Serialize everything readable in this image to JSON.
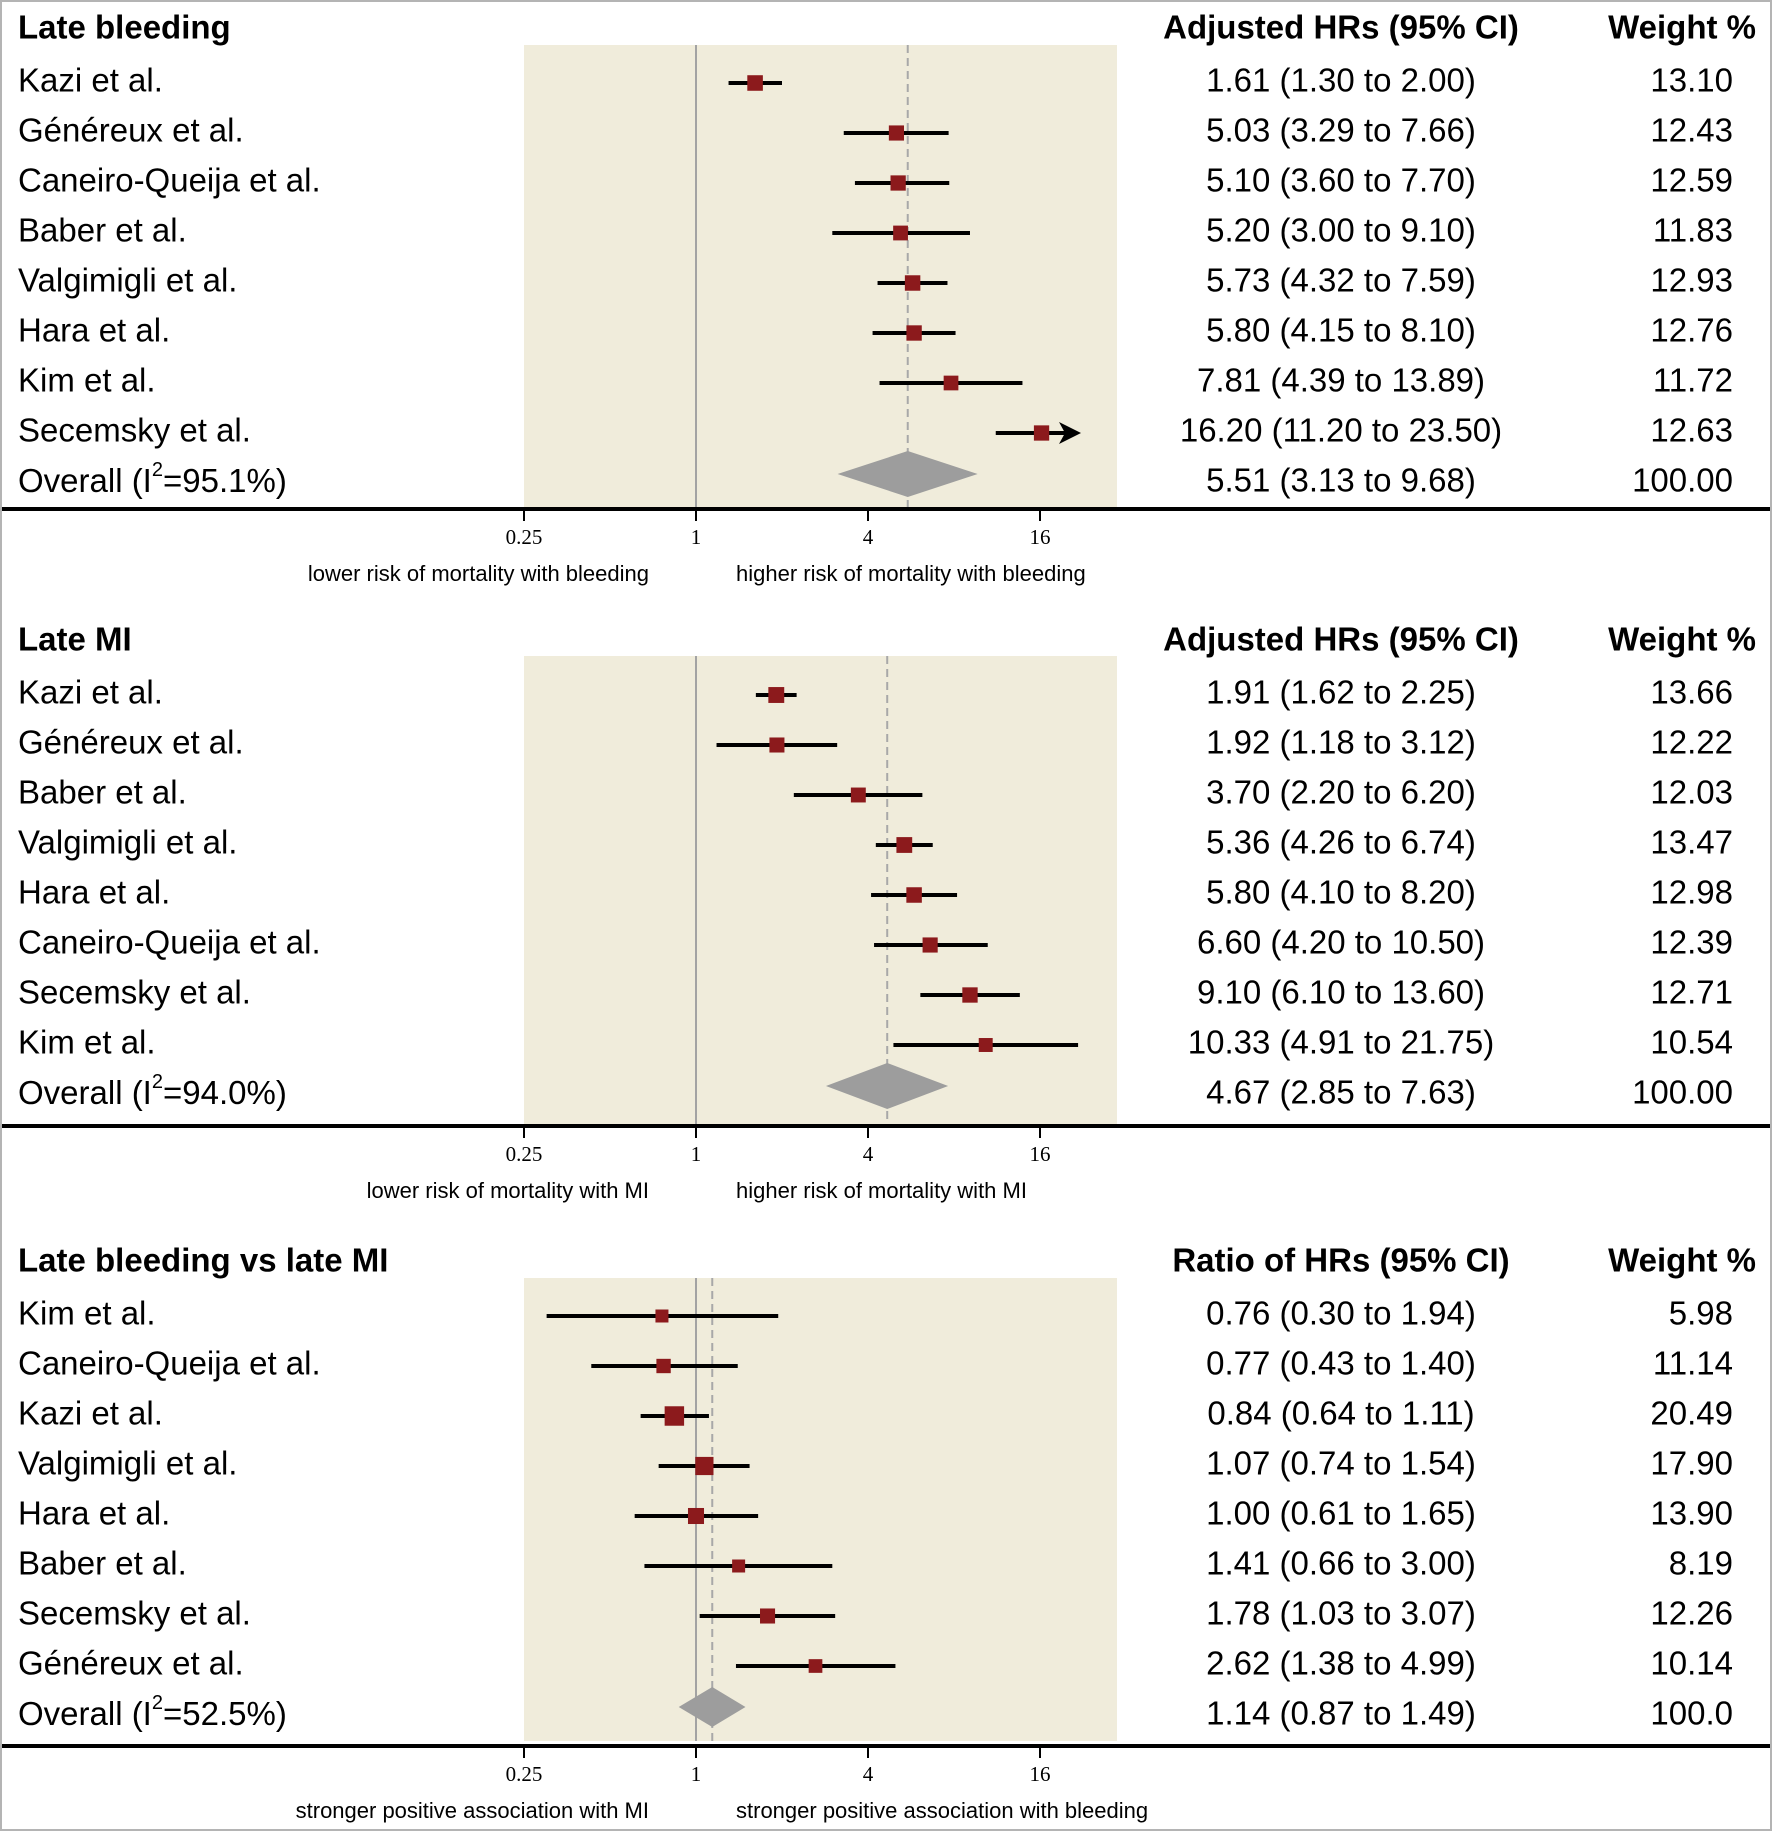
{
  "chart_data": [
    {
      "type": "forest",
      "title": "Late bleeding",
      "estimate_header": "Adjusted HRs (95% CI)",
      "weight_header": "Weight %",
      "x_scale": "log",
      "x_ticks": [
        0.25,
        1,
        4,
        16
      ],
      "x_tick_labels": [
        "0.25",
        "1",
        "4",
        "16"
      ],
      "xlim": [
        0.25,
        29.5
      ],
      "null_value": 1,
      "caption_left": "lower risk of mortality with bleeding",
      "caption_right": "higher risk of mortality with bleeding",
      "studies": [
        {
          "name": "Kazi et al.",
          "est": 1.61,
          "lo": 1.3,
          "hi": 2.0,
          "label": "1.61 (1.30 to 2.00)",
          "weight": "13.10"
        },
        {
          "name": "Généreux et al.",
          "est": 5.03,
          "lo": 3.29,
          "hi": 7.66,
          "label": "5.03 (3.29 to 7.66)",
          "weight": "12.43"
        },
        {
          "name": "Caneiro-Queija et al.",
          "est": 5.1,
          "lo": 3.6,
          "hi": 7.7,
          "label": "5.10 (3.60 to 7.70)",
          "weight": "12.59"
        },
        {
          "name": "Baber et al.",
          "est": 5.2,
          "lo": 3.0,
          "hi": 9.1,
          "label": "5.20 (3.00 to 9.10)",
          "weight": "11.83"
        },
        {
          "name": "Valgimigli et al.",
          "est": 5.73,
          "lo": 4.32,
          "hi": 7.59,
          "label": "5.73 (4.32 to 7.59)",
          "weight": "12.93"
        },
        {
          "name": "Hara et al.",
          "est": 5.8,
          "lo": 4.15,
          "hi": 8.1,
          "label": "5.80 (4.15 to 8.10)",
          "weight": "12.76"
        },
        {
          "name": "Kim et al.",
          "est": 7.81,
          "lo": 4.39,
          "hi": 13.89,
          "label": "7.81 (4.39 to 13.89)",
          "weight": "11.72"
        },
        {
          "name": "Secemsky et al.",
          "est": 16.2,
          "lo": 11.2,
          "hi": 23.5,
          "label": "16.20 (11.20 to 23.50)",
          "weight": "12.63",
          "arrow": true
        }
      ],
      "overall": {
        "name_prefix": "Overall (I",
        "sup": "2",
        "name_suffix": "=95.1%)",
        "est": 5.51,
        "lo": 3.13,
        "hi": 9.68,
        "label": "5.51 (3.13 to 9.68)",
        "weight": "100.00"
      }
    },
    {
      "type": "forest",
      "title": "Late MI",
      "estimate_header": "Adjusted HRs (95% CI)",
      "weight_header": "Weight %",
      "x_scale": "log",
      "x_ticks": [
        0.25,
        1,
        4,
        16
      ],
      "x_tick_labels": [
        "0.25",
        "1",
        "4",
        "16"
      ],
      "xlim": [
        0.25,
        29.5
      ],
      "null_value": 1,
      "caption_left": "lower risk of mortality with MI",
      "caption_right": "higher risk of mortality with MI",
      "studies": [
        {
          "name": "Kazi et al.",
          "est": 1.91,
          "lo": 1.62,
          "hi": 2.25,
          "label": "1.91 (1.62 to 2.25)",
          "weight": "13.66"
        },
        {
          "name": "Généreux et al.",
          "est": 1.92,
          "lo": 1.18,
          "hi": 3.12,
          "label": "1.92 (1.18 to 3.12)",
          "weight": "12.22"
        },
        {
          "name": "Baber et al.",
          "est": 3.7,
          "lo": 2.2,
          "hi": 6.2,
          "label": "3.70 (2.20 to 6.20)",
          "weight": "12.03"
        },
        {
          "name": "Valgimigli et al.",
          "est": 5.36,
          "lo": 4.26,
          "hi": 6.74,
          "label": "5.36 (4.26 to 6.74)",
          "weight": "13.47"
        },
        {
          "name": "Hara et al.",
          "est": 5.8,
          "lo": 4.1,
          "hi": 8.2,
          "label": "5.80 (4.10 to 8.20)",
          "weight": "12.98"
        },
        {
          "name": "Caneiro-Queija et al.",
          "est": 6.6,
          "lo": 4.2,
          "hi": 10.5,
          "label": "6.60 (4.20 to 10.50)",
          "weight": "12.39"
        },
        {
          "name": "Secemsky et al.",
          "est": 9.1,
          "lo": 6.1,
          "hi": 13.6,
          "label": "9.10 (6.10 to 13.60)",
          "weight": "12.71"
        },
        {
          "name": "Kim et al.",
          "est": 10.33,
          "lo": 4.91,
          "hi": 21.75,
          "label": "10.33 (4.91 to 21.75)",
          "weight": "10.54"
        }
      ],
      "overall": {
        "name_prefix": "Overall (I",
        "sup": "2",
        "name_suffix": "=94.0%)",
        "est": 4.67,
        "lo": 2.85,
        "hi": 7.63,
        "label": "4.67 (2.85 to 7.63)",
        "weight": "100.00"
      }
    },
    {
      "type": "forest",
      "title": "Late bleeding vs late MI",
      "estimate_header": "Ratio of HRs (95% CI)",
      "weight_header": "Weight %",
      "x_scale": "log",
      "x_ticks": [
        0.25,
        1,
        4,
        16
      ],
      "x_tick_labels": [
        "0.25",
        "1",
        "4",
        "16"
      ],
      "xlim": [
        0.25,
        29.5
      ],
      "null_value": 1,
      "caption_left": "stronger positive association with MI",
      "caption_right": "stronger positive association with bleeding",
      "studies": [
        {
          "name": "Kim et al.",
          "est": 0.76,
          "lo": 0.3,
          "hi": 1.94,
          "label": "0.76 (0.30 to 1.94)",
          "weight": "5.98"
        },
        {
          "name": "Caneiro-Queija et al.",
          "est": 0.77,
          "lo": 0.43,
          "hi": 1.4,
          "label": "0.77 (0.43 to 1.40)",
          "weight": "11.14"
        },
        {
          "name": "Kazi et al.",
          "est": 0.84,
          "lo": 0.64,
          "hi": 1.11,
          "label": "0.84 (0.64 to 1.11)",
          "weight": "20.49"
        },
        {
          "name": "Valgimigli et al.",
          "est": 1.07,
          "lo": 0.74,
          "hi": 1.54,
          "label": "1.07 (0.74 to 1.54)",
          "weight": "17.90"
        },
        {
          "name": "Hara et al.",
          "est": 1.0,
          "lo": 0.61,
          "hi": 1.65,
          "label": "1.00 (0.61 to 1.65)",
          "weight": "13.90"
        },
        {
          "name": "Baber et al.",
          "est": 1.41,
          "lo": 0.66,
          "hi": 3.0,
          "label": "1.41 (0.66 to 3.00)",
          "weight": "8.19"
        },
        {
          "name": "Secemsky et al.",
          "est": 1.78,
          "lo": 1.03,
          "hi": 3.07,
          "label": "1.78 (1.03 to 3.07)",
          "weight": "12.26"
        },
        {
          "name": "Généreux et al.",
          "est": 2.62,
          "lo": 1.38,
          "hi": 4.99,
          "label": "2.62 (1.38 to 4.99)",
          "weight": "10.14"
        }
      ],
      "overall": {
        "name_prefix": "Overall (I",
        "sup": "2",
        "name_suffix": "=52.5%)",
        "est": 1.14,
        "lo": 0.87,
        "hi": 1.49,
        "label": "1.14 (0.87 to 1.49)",
        "weight": "100.0"
      }
    }
  ],
  "colors": {
    "marker": "#8c1a1c",
    "diamond": "#9d9d9d",
    "shade": "#f0ecdb",
    "null_line": "#a3a3a3",
    "pooled_line": "#a8a8a8",
    "ci_line": "#000000",
    "frame": "#b4b4b4"
  }
}
